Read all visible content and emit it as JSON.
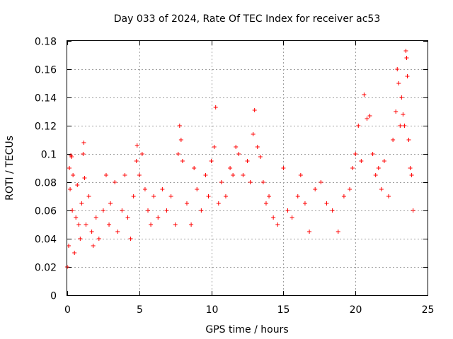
{
  "chart_data": {
    "type": "scatter",
    "title": "Day 033 of 2024, Rate Of TEC Index for receiver ac53",
    "xlabel": "GPS time / hours",
    "ylabel": "ROTI / TECUs",
    "xlim": [
      0,
      25
    ],
    "ylim": [
      0,
      0.18
    ],
    "xticks": [
      0,
      5,
      10,
      15,
      20,
      25
    ],
    "xtick_labels": [
      "0",
      "5",
      "10",
      "15",
      "20",
      "25"
    ],
    "yticks": [
      0,
      0.02,
      0.04,
      0.06,
      0.08,
      0.1,
      0.12,
      0.14,
      0.16,
      0.18
    ],
    "ytick_labels": [
      "0",
      "0.02",
      "0.04",
      "0.06",
      "0.08",
      "0.1",
      "0.12",
      "0.14",
      "0.16",
      "0.18"
    ],
    "grid": true,
    "marker": "+",
    "series": [
      {
        "name": "ROTI",
        "color": "#ff0000",
        "points": [
          [
            0.0,
            0.02
          ],
          [
            0.1,
            0.035
          ],
          [
            0.15,
            0.09
          ],
          [
            0.2,
            0.075
          ],
          [
            0.25,
            0.099
          ],
          [
            0.3,
            0.098
          ],
          [
            0.35,
            0.06
          ],
          [
            0.4,
            0.085
          ],
          [
            0.5,
            0.03
          ],
          [
            0.6,
            0.055
          ],
          [
            0.7,
            0.078
          ],
          [
            0.8,
            0.05
          ],
          [
            0.9,
            0.04
          ],
          [
            1.0,
            0.065
          ],
          [
            1.1,
            0.1
          ],
          [
            1.15,
            0.108
          ],
          [
            1.2,
            0.083
          ],
          [
            1.3,
            0.05
          ],
          [
            1.5,
            0.07
          ],
          [
            1.7,
            0.045
          ],
          [
            1.8,
            0.035
          ],
          [
            2.0,
            0.055
          ],
          [
            2.2,
            0.04
          ],
          [
            2.5,
            0.06
          ],
          [
            2.7,
            0.085
          ],
          [
            2.9,
            0.05
          ],
          [
            3.0,
            0.065
          ],
          [
            3.3,
            0.08
          ],
          [
            3.5,
            0.045
          ],
          [
            3.8,
            0.06
          ],
          [
            4.0,
            0.085
          ],
          [
            4.2,
            0.055
          ],
          [
            4.4,
            0.04
          ],
          [
            4.6,
            0.07
          ],
          [
            4.8,
            0.095
          ],
          [
            4.85,
            0.106
          ],
          [
            5.0,
            0.085
          ],
          [
            5.2,
            0.1
          ],
          [
            5.4,
            0.075
          ],
          [
            5.6,
            0.06
          ],
          [
            5.8,
            0.05
          ],
          [
            6.0,
            0.07
          ],
          [
            6.3,
            0.055
          ],
          [
            6.6,
            0.075
          ],
          [
            6.9,
            0.06
          ],
          [
            7.2,
            0.07
          ],
          [
            7.5,
            0.05
          ],
          [
            7.7,
            0.1
          ],
          [
            7.8,
            0.12
          ],
          [
            7.9,
            0.11
          ],
          [
            8.0,
            0.095
          ],
          [
            8.3,
            0.065
          ],
          [
            8.6,
            0.05
          ],
          [
            8.8,
            0.09
          ],
          [
            9.0,
            0.075
          ],
          [
            9.3,
            0.06
          ],
          [
            9.6,
            0.085
          ],
          [
            9.8,
            0.07
          ],
          [
            10.0,
            0.095
          ],
          [
            10.2,
            0.105
          ],
          [
            10.3,
            0.133
          ],
          [
            10.5,
            0.065
          ],
          [
            10.7,
            0.08
          ],
          [
            11.0,
            0.07
          ],
          [
            11.3,
            0.09
          ],
          [
            11.5,
            0.085
          ],
          [
            11.7,
            0.105
          ],
          [
            11.9,
            0.1
          ],
          [
            12.2,
            0.085
          ],
          [
            12.5,
            0.095
          ],
          [
            12.7,
            0.08
          ],
          [
            12.9,
            0.114
          ],
          [
            13.0,
            0.131
          ],
          [
            13.2,
            0.105
          ],
          [
            13.4,
            0.098
          ],
          [
            13.6,
            0.08
          ],
          [
            13.8,
            0.065
          ],
          [
            14.0,
            0.07
          ],
          [
            14.3,
            0.055
          ],
          [
            14.6,
            0.05
          ],
          [
            15.0,
            0.09
          ],
          [
            15.3,
            0.06
          ],
          [
            15.6,
            0.055
          ],
          [
            16.0,
            0.07
          ],
          [
            16.2,
            0.085
          ],
          [
            16.5,
            0.065
          ],
          [
            16.8,
            0.045
          ],
          [
            17.2,
            0.075
          ],
          [
            17.6,
            0.08
          ],
          [
            18.0,
            0.065
          ],
          [
            18.4,
            0.06
          ],
          [
            18.8,
            0.045
          ],
          [
            19.2,
            0.07
          ],
          [
            19.6,
            0.075
          ],
          [
            19.8,
            0.09
          ],
          [
            20.0,
            0.1
          ],
          [
            20.2,
            0.12
          ],
          [
            20.4,
            0.095
          ],
          [
            20.6,
            0.142
          ],
          [
            20.8,
            0.125
          ],
          [
            21.0,
            0.127
          ],
          [
            21.2,
            0.1
          ],
          [
            21.4,
            0.085
          ],
          [
            21.6,
            0.09
          ],
          [
            21.8,
            0.075
          ],
          [
            22.0,
            0.095
          ],
          [
            22.3,
            0.07
          ],
          [
            22.6,
            0.11
          ],
          [
            22.8,
            0.13
          ],
          [
            22.9,
            0.16
          ],
          [
            23.0,
            0.15
          ],
          [
            23.1,
            0.12
          ],
          [
            23.2,
            0.14
          ],
          [
            23.3,
            0.128
          ],
          [
            23.4,
            0.12
          ],
          [
            23.5,
            0.173
          ],
          [
            23.55,
            0.168
          ],
          [
            23.6,
            0.155
          ],
          [
            23.7,
            0.11
          ],
          [
            23.8,
            0.09
          ],
          [
            23.9,
            0.085
          ],
          [
            24.0,
            0.06
          ]
        ]
      }
    ]
  }
}
